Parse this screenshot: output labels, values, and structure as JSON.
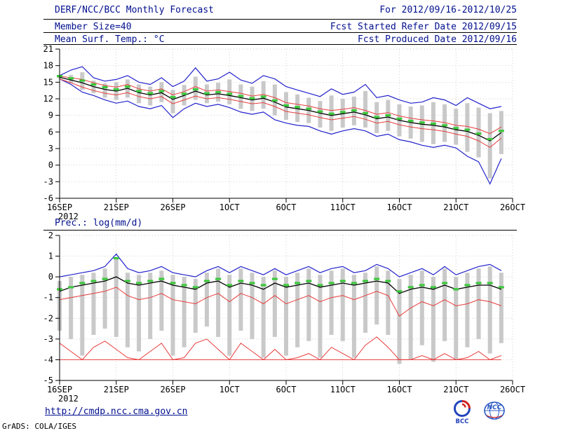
{
  "colors": {
    "header_text": "#000f8e",
    "axis_text": "#000000",
    "grid": "#bdbdbd"
  },
  "header": {
    "for_range": "For 2012/09/16-2012/10/25",
    "member_size": "Member Size=40",
    "refer_date": "Fcst Started Refer Date 2012/09/15",
    "produced_date": "Fcst Produced Date 2012/09/16",
    "report_title": "DERF/NCC/BCC Monthly Forecast"
  },
  "footer": {
    "url": "http://cmdp.ncc.cma.gov.cn",
    "grads_credit": "GrADS: COLA/IGES",
    "bcc_text": "BCC",
    "ncc_text": "NCC"
  },
  "chart_data": [
    {
      "type": "line",
      "title": "Mean Surf. Temp.: °C",
      "x_tick_labels": [
        "16SEP",
        "21SEP",
        "26SEP",
        "1OCT",
        "6OCT",
        "11OCT",
        "16OCT",
        "21OCT",
        "26OCT"
      ],
      "x_sub_label": "2012",
      "x_points": 40,
      "ylim": [
        -6,
        21
      ],
      "ytick_step": 3,
      "grid": true,
      "series": [
        {
          "name": "ensemble-max",
          "color": "#2222cc",
          "width": 1.2,
          "values": [
            16.2,
            17.2,
            17.8,
            15.8,
            15.2,
            15.5,
            16.2,
            15.0,
            14.6,
            15.8,
            14.2,
            15.2,
            17.6,
            15.2,
            15.6,
            16.8,
            15.4,
            14.8,
            16.2,
            15.6,
            14.2,
            13.6,
            13.0,
            12.4,
            13.8,
            12.8,
            13.2,
            14.6,
            12.2,
            12.6,
            11.8,
            11.2,
            11.4,
            12.2,
            11.8,
            10.8,
            12.2,
            11.2,
            10.2,
            10.6
          ]
        },
        {
          "name": "ensemble-min",
          "color": "#2222cc",
          "width": 1.2,
          "values": [
            15.6,
            14.6,
            13.2,
            12.6,
            11.8,
            11.2,
            11.6,
            10.6,
            10.2,
            10.8,
            8.6,
            10.2,
            11.2,
            10.6,
            11.0,
            10.4,
            9.6,
            9.2,
            9.6,
            8.2,
            7.6,
            7.2,
            7.0,
            6.2,
            5.6,
            6.2,
            6.6,
            6.2,
            5.2,
            5.6,
            4.6,
            4.2,
            3.6,
            3.2,
            3.6,
            3.1,
            1.6,
            0.6,
            -3.4,
            1.2
          ]
        },
        {
          "name": "upper-quartile",
          "color": "#e83c3c",
          "width": 1,
          "values": [
            16.1,
            15.8,
            15.5,
            14.9,
            14.4,
            14.1,
            14.6,
            13.8,
            13.4,
            13.8,
            12.7,
            13.3,
            14.2,
            13.4,
            13.6,
            13.3,
            13.0,
            12.5,
            12.8,
            12.2,
            11.3,
            11.0,
            10.7,
            10.2,
            9.9,
            10.1,
            10.4,
            9.9,
            9.2,
            9.5,
            8.9,
            8.5,
            8.2,
            8.0,
            7.7,
            7.2,
            7.0,
            6.5,
            5.7,
            6.9
          ]
        },
        {
          "name": "lower-quartile",
          "color": "#e83c3c",
          "width": 1,
          "values": [
            15.6,
            14.9,
            14.1,
            13.5,
            13.0,
            12.7,
            13.1,
            12.4,
            12.0,
            12.4,
            11.1,
            11.8,
            12.5,
            12.0,
            12.2,
            11.9,
            11.5,
            11.1,
            11.3,
            10.6,
            9.7,
            9.4,
            9.1,
            8.6,
            8.2,
            8.5,
            8.8,
            8.3,
            7.6,
            7.9,
            7.3,
            6.9,
            6.6,
            6.4,
            6.1,
            5.6,
            5.2,
            4.4,
            3.2,
            4.9
          ]
        },
        {
          "name": "ensemble-mean",
          "color": "#000000",
          "width": 1.3,
          "values": [
            15.9,
            15.4,
            14.9,
            14.2,
            13.7,
            13.4,
            13.9,
            13.1,
            12.7,
            13.1,
            11.9,
            12.6,
            13.4,
            12.7,
            12.9,
            12.6,
            12.2,
            11.8,
            12.1,
            11.4,
            10.5,
            10.2,
            9.9,
            9.4,
            9.0,
            9.3,
            9.6,
            9.1,
            8.4,
            8.7,
            8.1,
            7.7,
            7.4,
            7.2,
            6.9,
            6.4,
            6.1,
            5.4,
            4.4,
            5.9
          ]
        }
      ],
      "spread_bars": {
        "color": "#c9c9c9",
        "high": [
          16.0,
          16.3,
          16.8,
          15.3,
          14.8,
          15.0,
          15.5,
          14.6,
          14.2,
          15.0,
          13.6,
          14.5,
          16.0,
          14.6,
          14.9,
          15.5,
          14.6,
          14.2,
          15.2,
          14.6,
          13.2,
          12.8,
          12.2,
          11.6,
          12.6,
          12.0,
          12.4,
          13.4,
          11.4,
          11.8,
          11.0,
          10.6,
          10.8,
          11.4,
          11.0,
          10.2,
          11.2,
          10.4,
          9.4,
          9.8
        ],
        "low": [
          15.7,
          14.8,
          13.6,
          13.0,
          12.2,
          11.8,
          12.2,
          11.2,
          10.8,
          11.4,
          9.4,
          10.8,
          11.8,
          11.2,
          11.5,
          11.0,
          10.2,
          9.8,
          10.2,
          9.0,
          8.2,
          7.8,
          7.6,
          6.8,
          6.2,
          6.8,
          7.2,
          6.8,
          5.8,
          6.2,
          5.2,
          4.8,
          4.2,
          3.8,
          4.2,
          3.7,
          2.4,
          1.4,
          -2.4,
          2.0
        ]
      },
      "climatology_marks": {
        "color": "#3cc83c",
        "values": [
          16.1,
          15.7,
          15.3,
          14.6,
          14.1,
          13.7,
          14.2,
          13.4,
          13.0,
          13.4,
          12.3,
          12.9,
          13.7,
          13.0,
          13.2,
          12.9,
          12.5,
          12.1,
          12.4,
          11.7,
          10.8,
          10.5,
          10.2,
          9.7,
          9.3,
          9.6,
          9.9,
          9.4,
          8.7,
          9.0,
          8.4,
          8.0,
          7.7,
          7.5,
          7.2,
          6.7,
          6.4,
          5.7,
          4.7,
          6.2
        ]
      }
    },
    {
      "type": "line",
      "title": "Prec.: log(mm/d)",
      "x_tick_labels": [
        "16SEP",
        "21SEP",
        "26SEP",
        "1OCT",
        "6OCT",
        "11OCT",
        "16OCT",
        "21OCT",
        "26OCT"
      ],
      "x_sub_label": "2012",
      "x_points": 40,
      "ylim": [
        -5,
        2
      ],
      "ytick_step": 1,
      "grid": true,
      "series": [
        {
          "name": "ensemble-max",
          "color": "#2222cc",
          "width": 1.2,
          "values": [
            0.0,
            0.1,
            0.2,
            0.3,
            0.5,
            1.1,
            0.4,
            0.2,
            0.3,
            0.5,
            0.2,
            0.1,
            0.0,
            0.3,
            0.5,
            0.2,
            0.5,
            0.3,
            0.1,
            0.4,
            0.1,
            0.3,
            0.5,
            0.2,
            0.4,
            0.5,
            0.2,
            0.3,
            0.6,
            0.4,
            0.0,
            0.2,
            0.4,
            0.1,
            0.5,
            0.1,
            0.3,
            0.5,
            0.6,
            0.3
          ]
        },
        {
          "name": "upper-quartile",
          "color": "#e83c3c",
          "width": 1,
          "values": [
            -1.1,
            -1.0,
            -0.9,
            -0.8,
            -0.7,
            -0.5,
            -0.9,
            -1.1,
            -1.0,
            -0.8,
            -1.1,
            -1.2,
            -1.3,
            -1.0,
            -0.8,
            -1.2,
            -0.8,
            -1.0,
            -1.3,
            -0.9,
            -1.3,
            -1.1,
            -0.9,
            -1.2,
            -1.0,
            -0.9,
            -1.1,
            -0.9,
            -0.7,
            -0.9,
            -1.9,
            -1.5,
            -1.2,
            -1.4,
            -1.1,
            -1.4,
            -1.3,
            -1.1,
            -1.2,
            -1.4
          ]
        },
        {
          "name": "lower-quartile",
          "color": "#e83c3c",
          "width": 1,
          "values": [
            -3.2,
            -3.6,
            -4.0,
            -3.4,
            -3.1,
            -3.5,
            -3.9,
            -4.0,
            -3.6,
            -3.2,
            -4.0,
            -3.9,
            -3.2,
            -3.0,
            -3.5,
            -4.0,
            -3.2,
            -3.6,
            -4.0,
            -3.5,
            -4.0,
            -3.9,
            -3.7,
            -4.0,
            -3.4,
            -3.7,
            -4.0,
            -3.3,
            -2.9,
            -3.4,
            -4.0,
            -4.0,
            -3.8,
            -4.0,
            -3.7,
            -4.0,
            -3.9,
            -3.6,
            -4.0,
            -3.8
          ]
        },
        {
          "name": "ensemble-min-floor",
          "color": "#e83c3c",
          "width": 1,
          "values": [
            -4.0,
            -4.0,
            -4.0,
            -4.0,
            -4.0,
            -4.0,
            -4.0,
            -4.0,
            -4.0,
            -4.0,
            -4.0,
            -4.0,
            -4.0,
            -4.0,
            -4.0,
            -4.0,
            -4.0,
            -4.0,
            -4.0,
            -4.0,
            -4.0,
            -4.0,
            -4.0,
            -4.0,
            -4.0,
            -4.0,
            -4.0,
            -4.0,
            -4.0,
            -4.0,
            -4.0,
            -4.0,
            -4.0,
            -4.0,
            -4.0,
            -4.0,
            -4.0,
            -4.0,
            -4.0,
            -4.0
          ]
        },
        {
          "name": "ensemble-mean",
          "color": "#000000",
          "width": 1.3,
          "values": [
            -0.7,
            -0.5,
            -0.4,
            -0.3,
            -0.2,
            0.0,
            -0.3,
            -0.4,
            -0.3,
            -0.2,
            -0.4,
            -0.5,
            -0.6,
            -0.3,
            -0.2,
            -0.5,
            -0.3,
            -0.4,
            -0.6,
            -0.3,
            -0.5,
            -0.4,
            -0.3,
            -0.5,
            -0.4,
            -0.3,
            -0.4,
            -0.3,
            -0.2,
            -0.3,
            -0.8,
            -0.6,
            -0.5,
            -0.6,
            -0.4,
            -0.6,
            -0.5,
            -0.4,
            -0.4,
            -0.6
          ]
        }
      ],
      "spread_bars": {
        "color": "#c9c9c9",
        "high": [
          -0.2,
          0.0,
          0.1,
          0.2,
          0.4,
          0.9,
          0.2,
          0.1,
          0.2,
          0.3,
          0.1,
          0.0,
          -0.1,
          0.2,
          0.4,
          0.1,
          0.4,
          0.2,
          0.0,
          0.3,
          0.0,
          0.2,
          0.4,
          0.1,
          0.3,
          0.4,
          0.1,
          0.2,
          0.5,
          0.3,
          -0.1,
          0.1,
          0.3,
          0.0,
          0.4,
          0.0,
          0.2,
          0.4,
          0.5,
          0.2
        ],
        "low": [
          -2.6,
          -3.0,
          -3.8,
          -2.8,
          -2.5,
          -2.9,
          -3.4,
          -3.6,
          -3.0,
          -2.6,
          -3.8,
          -3.4,
          -2.7,
          -2.4,
          -2.9,
          -3.8,
          -2.6,
          -3.0,
          -3.9,
          -2.9,
          -3.8,
          -3.4,
          -3.1,
          -3.9,
          -2.8,
          -3.1,
          -3.9,
          -2.7,
          -2.3,
          -2.8,
          -4.2,
          -4.0,
          -3.3,
          -4.1,
          -3.1,
          -4.0,
          -3.4,
          -3.0,
          -3.7,
          -3.2
        ]
      },
      "climatology_marks": {
        "color": "#3cc83c",
        "values": [
          -0.6,
          -0.5,
          -0.3,
          -0.2,
          -0.1,
          0.9,
          -0.2,
          -0.3,
          -0.2,
          -0.1,
          -0.3,
          -0.4,
          -0.5,
          -0.2,
          -0.1,
          -0.4,
          -0.2,
          -0.3,
          -0.4,
          -0.1,
          -0.4,
          -0.3,
          -0.2,
          -0.4,
          -0.3,
          -0.2,
          -0.3,
          -0.2,
          -0.1,
          -0.2,
          -0.7,
          -0.5,
          -0.4,
          -0.5,
          -0.3,
          -0.6,
          -0.4,
          -0.3,
          -0.3,
          -0.5
        ]
      }
    }
  ]
}
